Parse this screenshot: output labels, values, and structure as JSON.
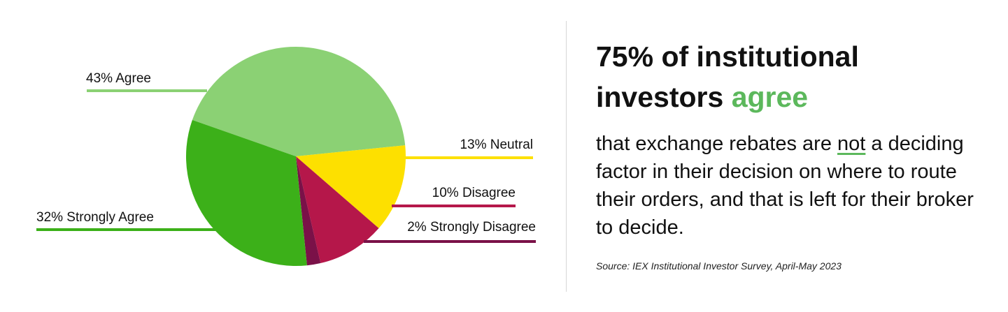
{
  "chart_data": {
    "type": "pie",
    "slices": [
      {
        "label": "43% Agree",
        "value": 43,
        "color": "#8bd174"
      },
      {
        "label": "13% Neutral",
        "value": 13,
        "color": "#fde000"
      },
      {
        "label": "10% Disagree",
        "value": 10,
        "color": "#b5174a"
      },
      {
        "label": "2% Strongly Disagree",
        "value": 2,
        "color": "#7a1148"
      },
      {
        "label": "32% Strongly Agree",
        "value": 32,
        "color": "#3cb019"
      }
    ]
  },
  "headline": {
    "line1": "75% of institutional",
    "line2_prefix": "investors ",
    "line2_accent": "agree"
  },
  "body": {
    "part1": "that exchange rebates are ",
    "emph": "not",
    "part2": " a deciding factor in their decision on where to route their orders, and that is left for their broker to decide."
  },
  "source": "Source: IEX Institutional Investor Survey, April-May 2023",
  "colors": {
    "accent": "#5cb85c"
  }
}
